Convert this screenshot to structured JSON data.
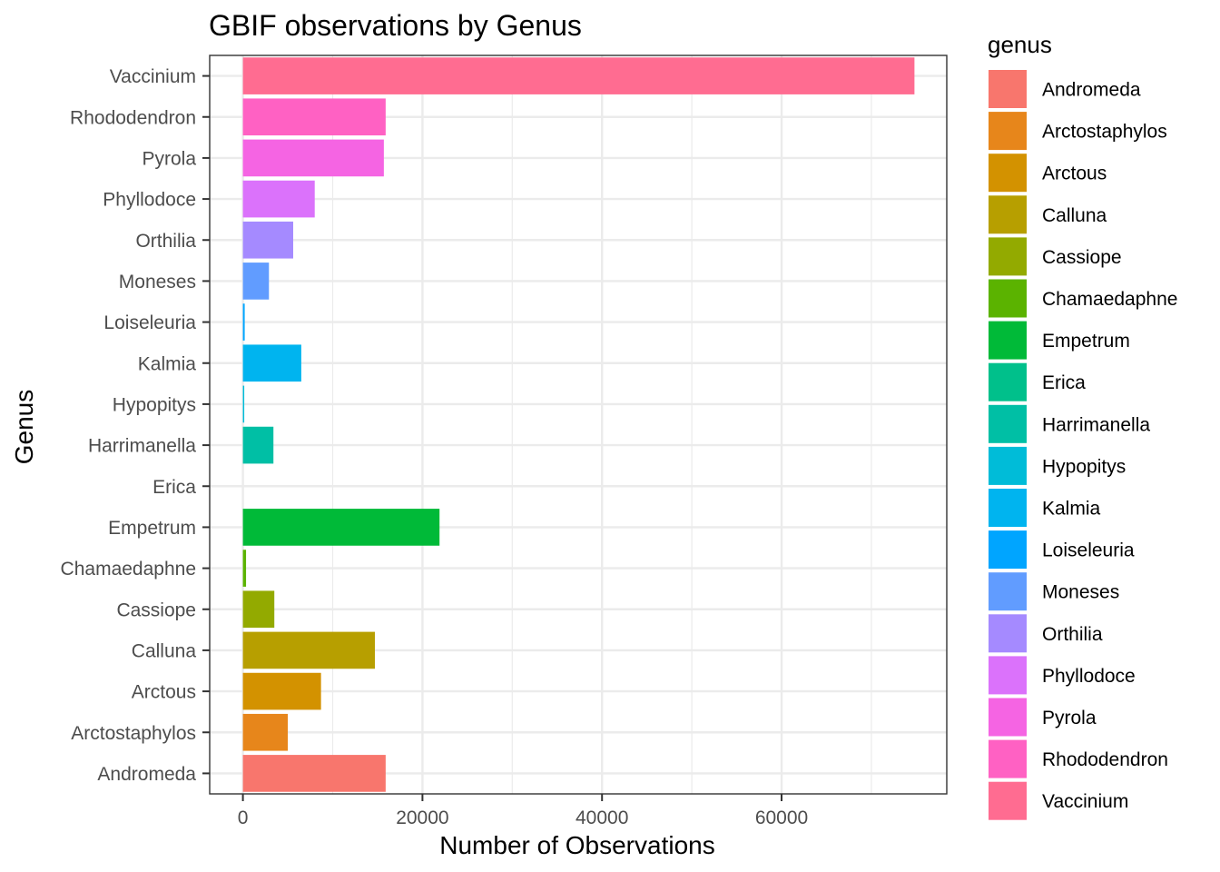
{
  "chart_data": {
    "type": "bar",
    "orientation": "horizontal",
    "title": "GBIF observations by Genus",
    "xlabel": "Number of Observations",
    "ylabel": "Genus",
    "xlim": [
      -3700,
      78400
    ],
    "x_ticks": [
      0,
      20000,
      40000,
      60000
    ],
    "x_tick_labels": [
      "0",
      "20000",
      "40000",
      "60000"
    ],
    "grid": true,
    "legend": {
      "title": "genus",
      "placement": "right"
    },
    "categories": [
      "Andromeda",
      "Arctostaphylos",
      "Arctous",
      "Calluna",
      "Cassiope",
      "Chamaedaphne",
      "Empetrum",
      "Erica",
      "Harrimanella",
      "Hypopitys",
      "Kalmia",
      "Loiseleuria",
      "Moneses",
      "Orthilia",
      "Phyllodoce",
      "Pyrola",
      "Rhododendron",
      "Vaccinium"
    ],
    "values": [
      15900,
      5000,
      8700,
      14700,
      3500,
      350,
      21900,
      0,
      3400,
      150,
      6500,
      200,
      2900,
      5600,
      8000,
      15700,
      15900,
      74800
    ],
    "colors": [
      "#F8766D",
      "#E7861B",
      "#D39200",
      "#B79F00",
      "#93AA00",
      "#5BB300",
      "#00BA38",
      "#00C08B",
      "#00BFA5",
      "#00BCD8",
      "#00B4EF",
      "#00A5FF",
      "#619CFF",
      "#A58AFF",
      "#DB72FB",
      "#F564E3",
      "#FF61C3",
      "#FF6C91"
    ]
  }
}
